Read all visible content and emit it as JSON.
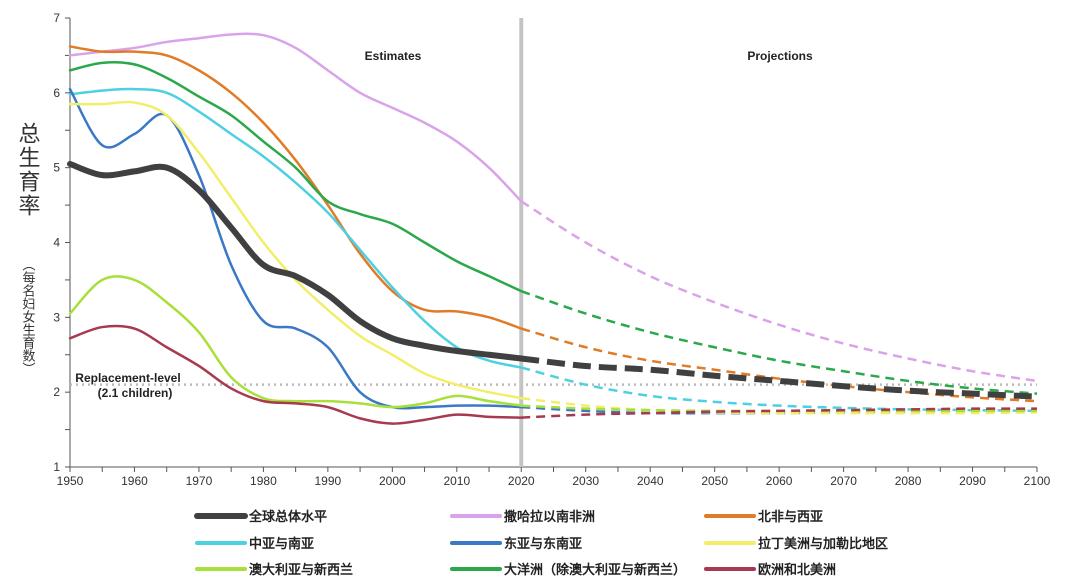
{
  "chart_data": {
    "type": "line",
    "ylabel": "总生育率",
    "ylabel_sub": "（每名妇女生育数）",
    "xlim": [
      1950,
      2100
    ],
    "ylim": [
      1,
      7
    ],
    "x_ticks": [
      1950,
      1960,
      1970,
      1980,
      1990,
      2000,
      2010,
      2020,
      2030,
      2040,
      2050,
      2060,
      2070,
      2080,
      2090,
      2100
    ],
    "y_ticks": [
      1,
      2,
      3,
      4,
      5,
      6,
      7
    ],
    "grid": false,
    "legend_position": "bottom",
    "divider_year": 2020,
    "annotations": {
      "estimates": "Estimates",
      "projections": "Projections",
      "replacement_line1": "Replacement-level",
      "replacement_line2": "(2.1 children)"
    },
    "replacement_level": 2.1,
    "estimates_x": [
      1950,
      1955,
      1960,
      1965,
      1970,
      1975,
      1980,
      1985,
      1990,
      1995,
      2000,
      2005,
      2010,
      2015,
      2020
    ],
    "projections_x": [
      2020,
      2030,
      2040,
      2050,
      2060,
      2070,
      2080,
      2090,
      2100
    ],
    "series": [
      {
        "name": "全球总体水平",
        "color": "#404040",
        "estimates": [
          5.05,
          4.9,
          4.95,
          5.0,
          4.7,
          4.2,
          3.7,
          3.55,
          3.3,
          2.95,
          2.72,
          2.62,
          2.55,
          2.5,
          2.45
        ],
        "projections": [
          2.45,
          2.35,
          2.3,
          2.22,
          2.15,
          2.08,
          2.02,
          1.98,
          1.94
        ]
      },
      {
        "name": "撒哈拉以南非洲",
        "color": "#d9a3ea",
        "estimates": [
          6.5,
          6.55,
          6.6,
          6.68,
          6.73,
          6.78,
          6.77,
          6.6,
          6.3,
          6.0,
          5.8,
          5.6,
          5.35,
          5.0,
          4.55
        ],
        "projections": [
          4.55,
          4.0,
          3.55,
          3.2,
          2.9,
          2.65,
          2.45,
          2.28,
          2.15
        ]
      },
      {
        "name": "北非与西亚",
        "color": "#e07b28",
        "estimates": [
          6.62,
          6.55,
          6.55,
          6.5,
          6.3,
          6.0,
          5.6,
          5.1,
          4.5,
          3.85,
          3.35,
          3.1,
          3.08,
          3.0,
          2.85
        ],
        "projections": [
          2.85,
          2.6,
          2.42,
          2.3,
          2.18,
          2.08,
          2.0,
          1.93,
          1.88
        ]
      },
      {
        "name": "中亚与南亚",
        "color": "#4dd0e1",
        "estimates": [
          5.98,
          6.03,
          6.05,
          6.0,
          5.75,
          5.45,
          5.15,
          4.8,
          4.4,
          3.9,
          3.4,
          2.95,
          2.6,
          2.42,
          2.33
        ],
        "projections": [
          2.33,
          2.1,
          1.95,
          1.87,
          1.82,
          1.79,
          1.77,
          1.76,
          1.75
        ]
      },
      {
        "name": "东亚与东南亚",
        "color": "#3a78c8",
        "estimates": [
          6.05,
          5.3,
          5.45,
          5.7,
          4.9,
          3.7,
          2.95,
          2.85,
          2.6,
          2.0,
          1.8,
          1.8,
          1.82,
          1.82,
          1.8
        ],
        "projections": [
          1.8,
          1.75,
          1.72,
          1.72,
          1.72,
          1.73,
          1.74,
          1.75,
          1.76
        ]
      },
      {
        "name": "拉丁美洲与加勒比地区",
        "color": "#f2ee6a",
        "estimates": [
          5.85,
          5.85,
          5.87,
          5.7,
          5.2,
          4.6,
          4.0,
          3.5,
          3.1,
          2.75,
          2.5,
          2.25,
          2.1,
          2.0,
          1.92
        ],
        "projections": [
          1.92,
          1.82,
          1.76,
          1.73,
          1.72,
          1.72,
          1.72,
          1.72,
          1.73
        ]
      },
      {
        "name": "澳大利亚与新西兰",
        "color": "#a8e03a",
        "estimates": [
          3.05,
          3.5,
          3.5,
          3.2,
          2.8,
          2.2,
          1.92,
          1.88,
          1.88,
          1.85,
          1.8,
          1.85,
          1.95,
          1.88,
          1.82
        ],
        "projections": [
          1.82,
          1.78,
          1.76,
          1.75,
          1.75,
          1.75,
          1.75,
          1.75,
          1.75
        ]
      },
      {
        "name": "大洋洲（除澳大利亚与新西兰）",
        "color": "#2aa84a",
        "estimates": [
          6.3,
          6.4,
          6.38,
          6.2,
          5.95,
          5.7,
          5.35,
          5.0,
          4.55,
          4.38,
          4.25,
          4.0,
          3.75,
          3.55,
          3.35
        ],
        "projections": [
          3.35,
          3.05,
          2.8,
          2.6,
          2.42,
          2.28,
          2.15,
          2.05,
          1.98
        ]
      },
      {
        "name": "欧洲和北美洲",
        "color": "#a83a50",
        "estimates": [
          2.72,
          2.87,
          2.85,
          2.6,
          2.35,
          2.05,
          1.88,
          1.85,
          1.8,
          1.65,
          1.58,
          1.63,
          1.7,
          1.67,
          1.66
        ],
        "projections": [
          1.66,
          1.7,
          1.72,
          1.74,
          1.75,
          1.76,
          1.77,
          1.78,
          1.78
        ]
      }
    ]
  }
}
